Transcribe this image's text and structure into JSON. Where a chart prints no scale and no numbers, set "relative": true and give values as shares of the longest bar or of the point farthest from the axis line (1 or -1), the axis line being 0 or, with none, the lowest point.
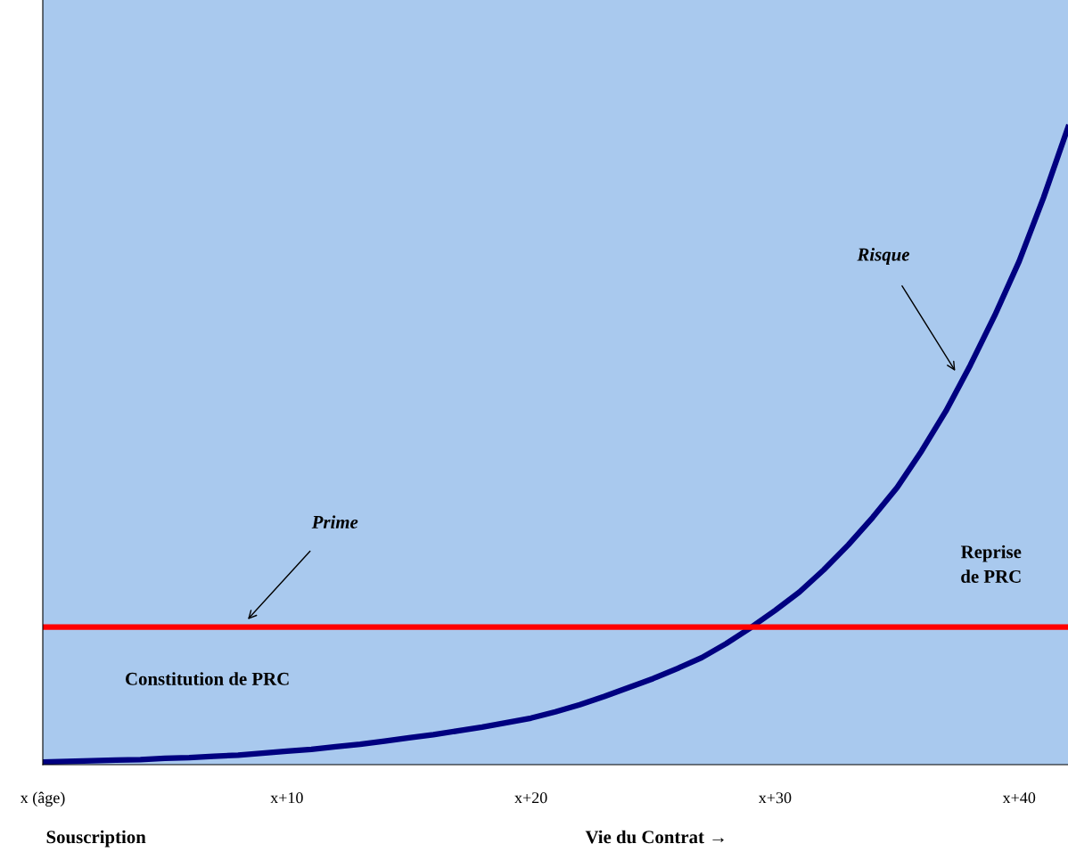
{
  "chart_data": {
    "type": "line",
    "relative": true,
    "categories": [
      "x (âge)",
      null,
      null,
      null,
      null,
      null,
      null,
      null,
      null,
      null,
      "x+10",
      null,
      null,
      null,
      null,
      null,
      null,
      null,
      null,
      null,
      "x+20",
      null,
      null,
      null,
      null,
      null,
      null,
      null,
      null,
      null,
      "x+30",
      null,
      null,
      null,
      null,
      null,
      null,
      null,
      null,
      null,
      "x+40",
      null,
      null
    ],
    "series": [
      {
        "color": "#000080",
        "values": [
          0.004,
          0.005,
          0.006,
          0.007,
          0.008,
          0.01,
          0.011,
          0.013,
          0.015,
          0.018,
          0.021,
          0.024,
          0.028,
          0.032,
          0.037,
          0.042,
          0.047,
          0.053,
          0.059,
          0.066,
          0.073,
          0.083,
          0.094,
          0.107,
          0.121,
          0.135,
          0.151,
          0.168,
          0.19,
          0.215,
          0.242,
          0.271,
          0.306,
          0.345,
          0.388,
          0.435,
          0.492,
          0.555,
          0.627,
          0.705,
          0.79,
          0.89,
          1.0
        ]
      },
      {
        "color": "#ff0000",
        "values": [
          0.216,
          0.216,
          0.216,
          0.216,
          0.216,
          0.216,
          0.216,
          0.216,
          0.216,
          0.216,
          0.216,
          0.216,
          0.216,
          0.216,
          0.216,
          0.216,
          0.216,
          0.216,
          0.216,
          0.216,
          0.216,
          0.216,
          0.216,
          0.216,
          0.216,
          0.216,
          0.216,
          0.216,
          0.216,
          0.216,
          0.216,
          0.216,
          0.216,
          0.216,
          0.216,
          0.216,
          0.216,
          0.216,
          0.216,
          0.216,
          0.216,
          0.216,
          0.216
        ]
      }
    ],
    "annotations": [
      "Risque",
      "Prime",
      "Constitution de PRC",
      "Reprise\nde PRC",
      "Souscription",
      "Vie du Contrat →"
    ],
    "grid": false,
    "legend": false,
    "marker": "none",
    "line_style": "solid"
  }
}
